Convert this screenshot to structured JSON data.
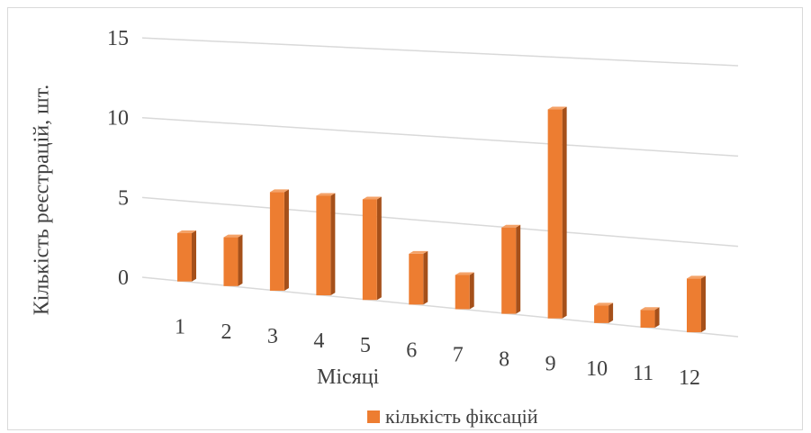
{
  "chart_data": {
    "type": "bar",
    "style": "3d-column",
    "title": "",
    "xlabel": "Місяці",
    "ylabel": "Кількість реєстрацій, шт.",
    "categories": [
      "1",
      "2",
      "3",
      "4",
      "5",
      "6",
      "7",
      "8",
      "9",
      "10",
      "11",
      "12"
    ],
    "series": [
      {
        "name": "кількість фіксацій",
        "color": "#ED7D31",
        "values": [
          3,
          3,
          6,
          6,
          6,
          3,
          2,
          5,
          12,
          1,
          1,
          3
        ]
      }
    ],
    "yticks": [
      "0",
      "5",
      "10",
      "15"
    ],
    "ylim": [
      0,
      15
    ],
    "grid": true,
    "legend_position": "bottom"
  }
}
